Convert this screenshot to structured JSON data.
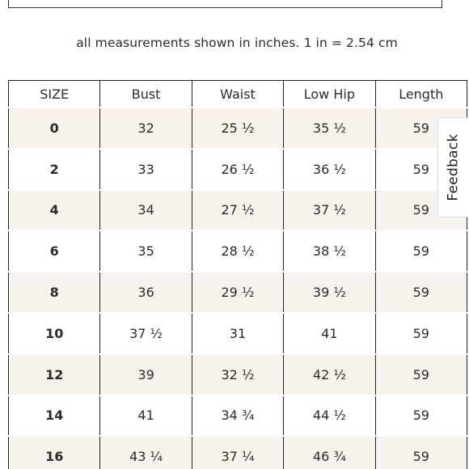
{
  "note": "all measurements shown in inches. 1 in = 2.54 cm",
  "table": {
    "headers": [
      "SIZE",
      "Bust",
      "Waist",
      "Low Hip",
      "Length"
    ],
    "rows": [
      [
        "0",
        "32",
        "25 ½",
        "35 ½",
        "59"
      ],
      [
        "2",
        "33",
        "26 ½",
        "36 ½",
        "59"
      ],
      [
        "4",
        "34",
        "27 ½",
        "37 ½",
        "59"
      ],
      [
        "6",
        "35",
        "28 ½",
        "38 ½",
        "59"
      ],
      [
        "8",
        "36",
        "29 ½",
        "39 ½",
        "59"
      ],
      [
        "10",
        "37 ½",
        "31",
        "41",
        "59"
      ],
      [
        "12",
        "39",
        "32 ½",
        "42 ½",
        "59"
      ],
      [
        "14",
        "41",
        "34 ¾",
        "44 ½",
        "59"
      ],
      [
        "16",
        "43 ¼",
        "37 ¼",
        "46 ¾",
        "59"
      ]
    ]
  },
  "feedback": {
    "label": "Feedback"
  },
  "colors": {
    "stripe": "#f7f2ec",
    "border": "#222222"
  }
}
